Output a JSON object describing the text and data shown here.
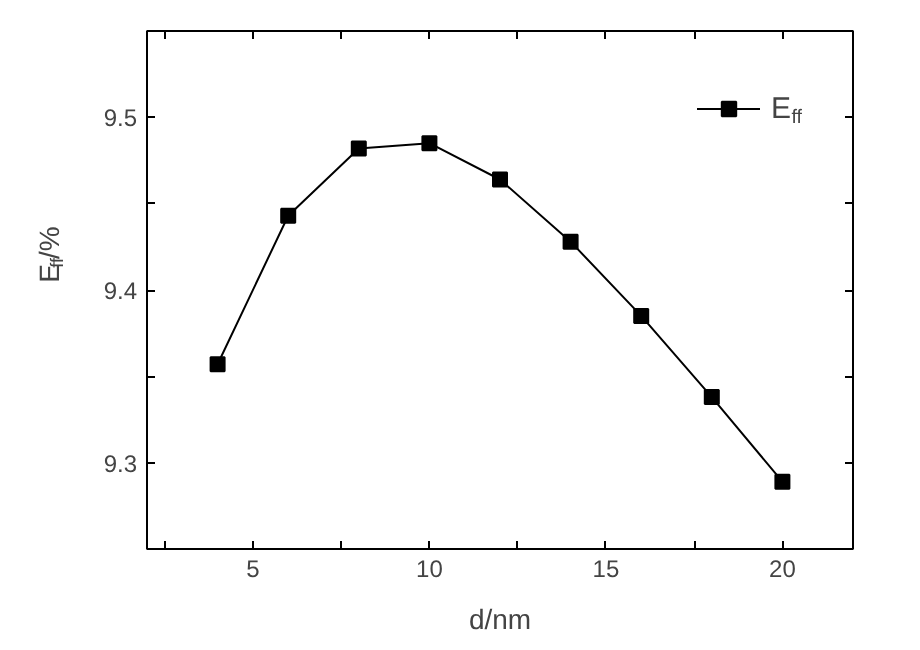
{
  "chart_data": {
    "type": "line",
    "xlabel": "d/nm",
    "ylabel": "E$_{ff}$/%",
    "x": [
      4,
      6,
      8,
      10,
      12,
      14,
      16,
      18,
      20
    ],
    "series": [
      {
        "name": "E$_{ff}$",
        "color": "#000000",
        "values": [
          9.357,
          9.443,
          9.482,
          9.485,
          9.464,
          9.428,
          9.385,
          9.338,
          9.289
        ]
      }
    ],
    "xlim": [
      2,
      22
    ],
    "xticks": [
      {
        "value": 2.5,
        "label": null
      },
      5,
      {
        "value": 7.5,
        "label": null
      },
      10,
      {
        "value": 12.5,
        "label": null
      },
      15,
      {
        "value": 17.5,
        "label": null
      },
      20
    ],
    "ylim": [
      9.25,
      9.55
    ],
    "yticks": [
      9.3,
      {
        "value": 9.35,
        "label": null
      },
      9.4,
      {
        "value": 9.45,
        "label": null
      },
      9.5
    ],
    "marker": "square",
    "line_style": "solid",
    "legend": "top right",
    "grid": false
  }
}
